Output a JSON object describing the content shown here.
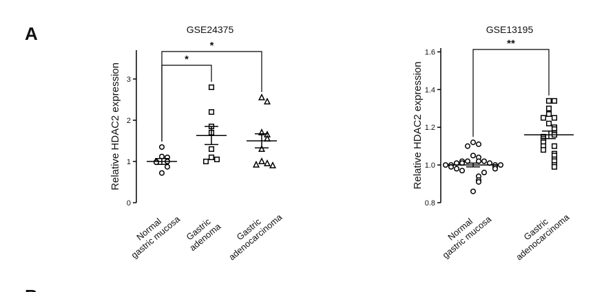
{
  "panel_labels": [
    "A",
    "B"
  ],
  "chart_data": [
    {
      "type": "dot",
      "title": "GSE24375",
      "y_label": "Relative HDAC2 expression",
      "ylim": [
        0,
        3.7
      ],
      "yticks": [
        0,
        1,
        2,
        3
      ],
      "groups": [
        {
          "label": [
            "Normal",
            "gastric mucosa"
          ],
          "marker": "circle",
          "values": [
            1.35,
            1.12,
            1.1,
            1.0,
            0.99,
            0.98,
            0.87,
            0.72
          ],
          "mean": 1.0,
          "sem": 0.07
        },
        {
          "label": [
            "Gastric",
            "adenoma"
          ],
          "marker": "square",
          "values": [
            2.8,
            2.2,
            1.85,
            1.7,
            1.3,
            1.1,
            1.05,
            1.0
          ],
          "mean": 1.63,
          "sem": 0.22
        },
        {
          "label": [
            "Gastric",
            "adenocarcinoma"
          ],
          "marker": "triangle",
          "values": [
            2.55,
            2.45,
            1.7,
            1.65,
            1.55,
            1.3,
            1.0,
            0.95,
            0.92,
            0.9
          ],
          "mean": 1.5,
          "sem": 0.17
        }
      ],
      "significance": [
        {
          "from": 0,
          "to": 1,
          "label": "*"
        },
        {
          "from": 0,
          "to": 2,
          "label": "*"
        }
      ]
    },
    {
      "type": "dot",
      "title": "GSE13195",
      "y_label": "Relative HDAC2 expression",
      "ylim": [
        0.8,
        1.62
      ],
      "yticks": [
        0.8,
        {
          "value": 1,
          "label": "1.0"
        },
        1.2,
        1.4,
        1.6
      ],
      "groups": [
        {
          "label": [
            "Normal",
            "gastric mucosa"
          ],
          "marker": "circle",
          "values": [
            1.12,
            1.11,
            1.1,
            1.05,
            1.04,
            1.02,
            1.02,
            1.02,
            1.02,
            1.01,
            1.01,
            1.01,
            1.0,
            1.0,
            1.0,
            1.0,
            0.99,
            0.99,
            0.98,
            0.98,
            0.97,
            0.96,
            0.94,
            0.92,
            0.91,
            0.86
          ],
          "mean": 1.0,
          "sem": 0.01
        },
        {
          "label": [
            "Gastric",
            "adenocarcinoma"
          ],
          "marker": "square",
          "values": [
            1.34,
            1.34,
            1.3,
            1.27,
            1.25,
            1.25,
            1.22,
            1.2,
            1.19,
            1.17,
            1.16,
            1.15,
            1.14,
            1.13,
            1.12,
            1.1,
            1.1,
            1.08,
            1.06,
            1.05,
            1.03,
            1.02,
            1.0,
            0.99
          ],
          "mean": 1.16,
          "sem": 0.02
        }
      ],
      "significance": [
        {
          "from": 0,
          "to": 1,
          "label": "**"
        }
      ]
    }
  ]
}
